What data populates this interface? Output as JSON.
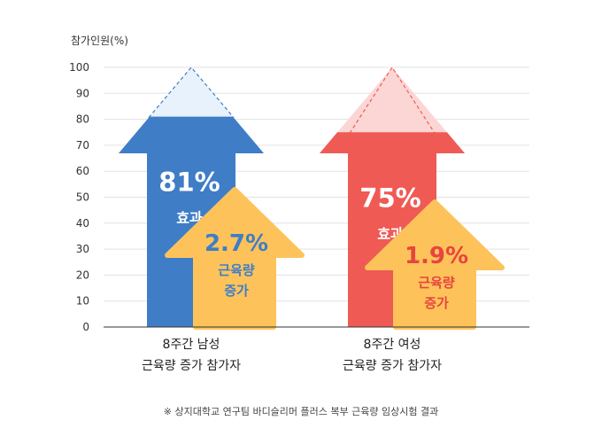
{
  "chart_data": {
    "type": "bar",
    "ylabel": "참가인원(%)",
    "ylim": [
      0,
      100
    ],
    "yticks": [
      0,
      10,
      20,
      30,
      40,
      50,
      60,
      70,
      80,
      90,
      100
    ],
    "categories": [
      {
        "line1": "8주간 남성",
        "line2": "근육량 증가 참가자"
      },
      {
        "line1": "8주간 여성",
        "line2": "근육량 증가 참가자"
      }
    ],
    "effect": {
      "values": [
        81,
        75
      ],
      "labels": [
        "81%",
        "75%"
      ],
      "label_sub": [
        "효과",
        "효과"
      ],
      "colors": [
        "#3f7dc7",
        "#ef5a55"
      ],
      "ghost_colors": [
        "#e7f2fc",
        "#fcd6d5"
      ]
    },
    "muscle_gain": {
      "values": [
        2.7,
        1.9
      ],
      "labels": [
        "2.7%",
        "1.9%"
      ],
      "label_sub_line1": [
        "근육량",
        "근육량"
      ],
      "label_sub_line2": [
        "증가",
        "증가"
      ],
      "color": "#fdc35a",
      "text_colors": [
        "#3f7dc7",
        "#e84440"
      ]
    },
    "grid": true
  },
  "footnote": "※ 상지대학교 연구팀 바디슬리머 플러스 복부 근육량 임상시험 결과"
}
